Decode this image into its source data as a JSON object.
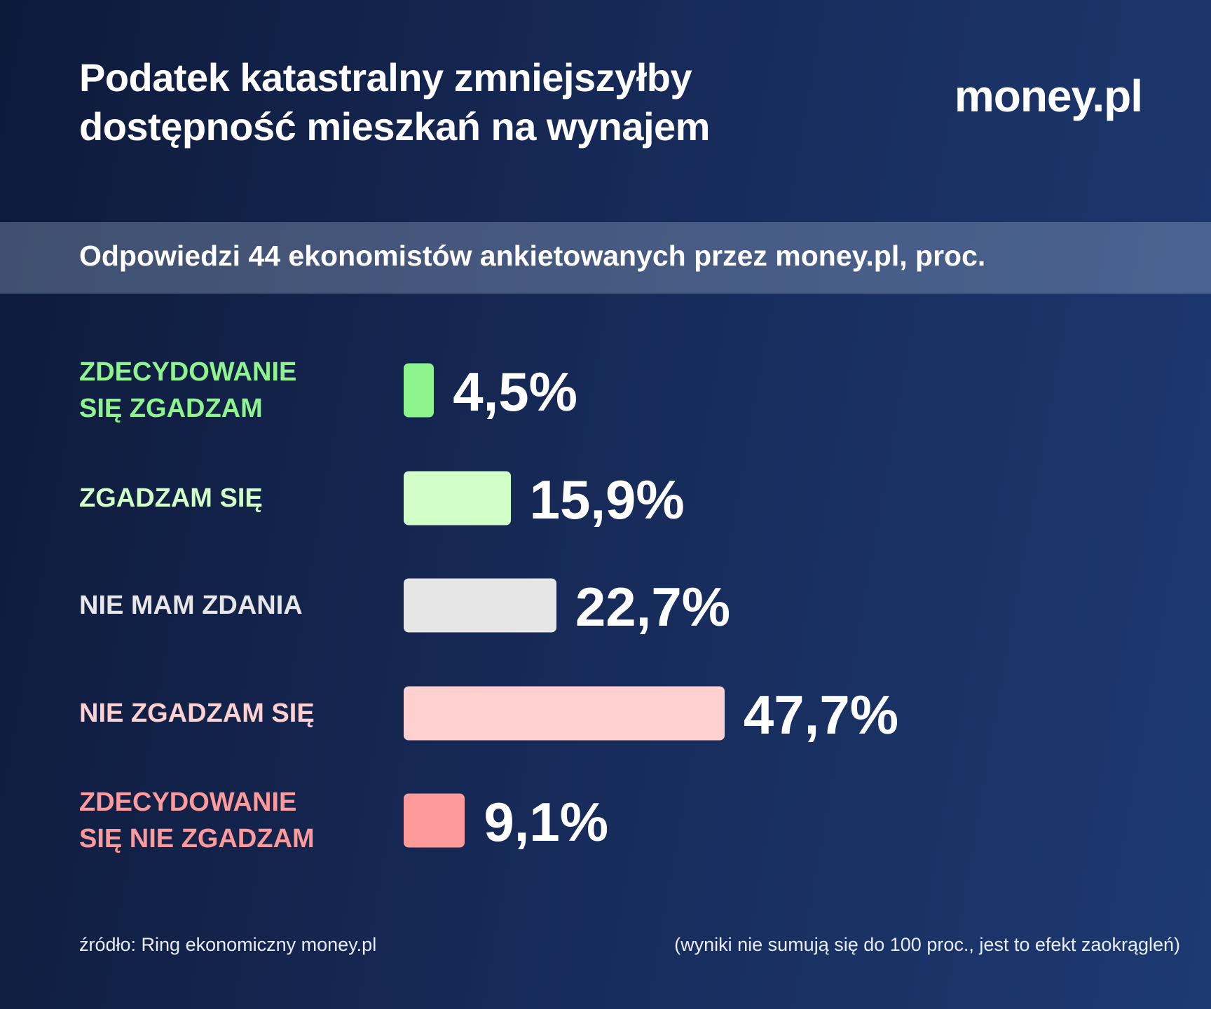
{
  "chart_data": {
    "type": "bar",
    "orientation": "horizontal",
    "title": "Podatek katastralny zmniejszyłby\ndostępność mieszkań na wynajem",
    "logo": "money.pl",
    "subtitle": "Odpowiedzi 44 ekonomistów ankietowanych przez money.pl, proc.",
    "categories": [
      "ZDECYDOWANIE\nSIĘ ZGADZAM",
      "ZGADZAM SIĘ",
      "NIE MAM ZDANIA",
      "NIE ZGADZAM SIĘ",
      "ZDECYDOWANIE\nSIĘ NIE ZGADZAM"
    ],
    "values": [
      4.5,
      15.9,
      22.7,
      47.7,
      9.1
    ],
    "value_labels": [
      "4,5%",
      "15,9%",
      "22,7%",
      "47,7%",
      "9,1%"
    ],
    "colors": [
      "#8ef58e",
      "#d2ffc8",
      "#e6e6e6",
      "#ffd0d0",
      "#ff9a9a"
    ],
    "source": "źródło: Ring ekonomiczny money.pl",
    "note": "(wyniki nie sumują się do 100 proc., jest to efekt zaokrągleń)"
  }
}
